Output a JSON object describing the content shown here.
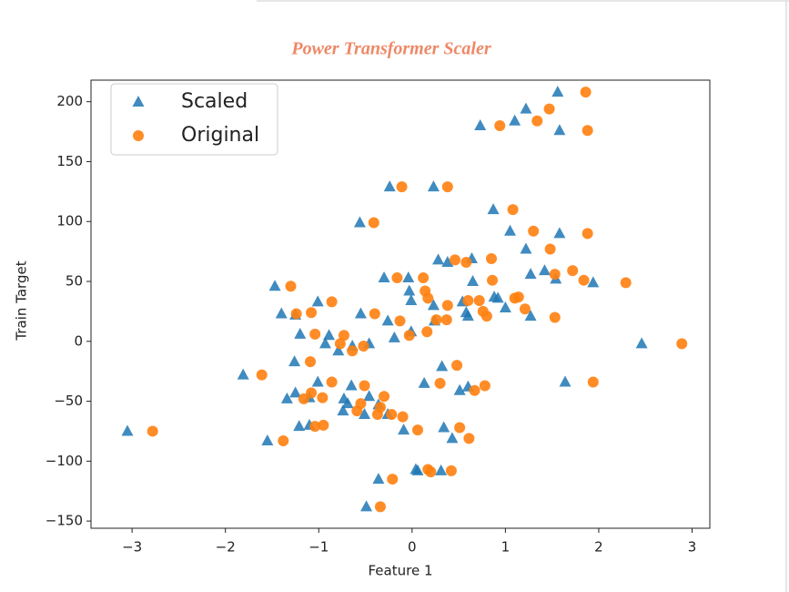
{
  "chart_data": {
    "type": "scatter",
    "title": "Power Transformer Scaler",
    "x_label": "Feature 1",
    "y_label": "Train Target",
    "xlim": [
      -3.44,
      3.19
    ],
    "ylim": [
      -156,
      218
    ],
    "xticks": [
      {
        "value": -3,
        "label": "−3"
      },
      {
        "value": -2,
        "label": "−2"
      },
      {
        "value": -1,
        "label": "−1"
      },
      0,
      1,
      2,
      3
    ],
    "yticks": [
      {
        "value": -150,
        "label": "−150"
      },
      {
        "value": -100,
        "label": "−100"
      },
      {
        "value": -50,
        "label": "−50"
      },
      0,
      50,
      100,
      150,
      200
    ],
    "legend": "upper left",
    "grid": false,
    "series": [
      {
        "name": "Scaled",
        "color": "#1f77b4",
        "marker": "triangle",
        "x": [
          -3.05,
          -1.81,
          -1.55,
          -1.47,
          -1.4,
          -1.34,
          -1.25,
          -1.26,
          -1.25,
          -1.21,
          -1.2,
          -1.1,
          -1.1,
          -1.01,
          -1.01,
          -0.93,
          -0.89,
          -0.79,
          -0.73,
          -0.69,
          -0.74,
          -0.65,
          -0.64,
          -0.56,
          -0.55,
          -0.51,
          -0.49,
          -0.46,
          -0.46,
          -0.36,
          -0.36,
          -0.26,
          -0.26,
          -0.24,
          -0.19,
          -0.09,
          -0.3,
          -0.03,
          -0.01,
          -0.01,
          -0.04,
          0.04,
          0.06,
          0.13,
          0.23,
          0.23,
          0.24,
          0.28,
          0.31,
          0.34,
          0.32,
          0.38,
          0.43,
          0.51,
          0.54,
          0.58,
          0.6,
          0.6,
          0.64,
          0.65,
          0.73,
          0.87,
          0.88,
          0.92,
          1.0,
          1.05,
          1.1,
          1.22,
          1.22,
          1.27,
          1.27,
          1.42,
          1.54,
          1.56,
          1.58,
          1.58,
          1.64,
          1.94,
          2.46
        ],
        "values": [
          -75,
          -28,
          -83,
          46,
          23,
          -48,
          -43,
          -17,
          22,
          -71,
          6,
          -70,
          -47,
          -34,
          33,
          -2,
          5,
          -8,
          -48,
          -52,
          -58,
          -37,
          -4,
          99,
          23,
          -61,
          -138,
          -46,
          -2,
          -115,
          -53,
          17,
          -61,
          129,
          3,
          -74,
          53,
          42,
          34,
          8,
          53,
          -107,
          -108,
          -35,
          30,
          129,
          17,
          68,
          -108,
          -72,
          -21,
          66,
          -81,
          -41,
          33,
          24,
          -38,
          21,
          69,
          50,
          180,
          110,
          37,
          36,
          28,
          92,
          184,
          77,
          194,
          56,
          21,
          59,
          52,
          208,
          176,
          90,
          -34,
          49,
          -2
        ]
      },
      {
        "name": "Original",
        "color": "#ff7f0e",
        "marker": "circle",
        "x": [
          -2.78,
          -1.61,
          -1.38,
          -1.3,
          -1.24,
          -1.16,
          -1.08,
          -1.08,
          -1.09,
          -1.04,
          -1.04,
          -0.95,
          -0.96,
          -0.86,
          -0.86,
          -0.77,
          -0.73,
          -0.64,
          -0.59,
          -0.55,
          -0.51,
          -0.52,
          -0.41,
          -0.4,
          -0.37,
          -0.34,
          -0.3,
          -0.34,
          -0.21,
          -0.22,
          -0.11,
          -0.13,
          -0.03,
          -0.1,
          -0.16,
          0.06,
          0.12,
          0.14,
          0.17,
          0.16,
          0.17,
          0.2,
          0.26,
          0.3,
          0.38,
          0.37,
          0.38,
          0.42,
          0.46,
          0.48,
          0.51,
          0.58,
          0.6,
          0.61,
          0.67,
          0.72,
          0.76,
          0.78,
          0.8,
          0.85,
          0.86,
          0.94,
          1.08,
          1.1,
          1.14,
          1.21,
          1.3,
          1.34,
          1.47,
          1.48,
          1.53,
          1.53,
          1.72,
          1.84,
          1.86,
          1.88,
          1.88,
          1.94,
          2.29,
          2.89
        ],
        "values": [
          -75,
          -28,
          -83,
          46,
          23,
          -48,
          24,
          -43,
          -17,
          6,
          -71,
          -70,
          -47,
          33,
          -34,
          -2,
          5,
          -8,
          -58,
          -52,
          -37,
          -4,
          99,
          23,
          -61,
          -138,
          -46,
          -55,
          -115,
          -61,
          129,
          17,
          5,
          -63,
          53,
          -74,
          53,
          42,
          36,
          8,
          -107,
          -109,
          18,
          -35,
          129,
          18,
          30,
          -108,
          68,
          -20,
          -72,
          66,
          34,
          -81,
          -41,
          34,
          25,
          -37,
          21,
          69,
          51,
          180,
          110,
          36,
          37,
          27,
          92,
          184,
          194,
          77,
          56,
          20,
          59,
          51,
          208,
          176,
          90,
          -34,
          49,
          -2
        ]
      }
    ]
  }
}
